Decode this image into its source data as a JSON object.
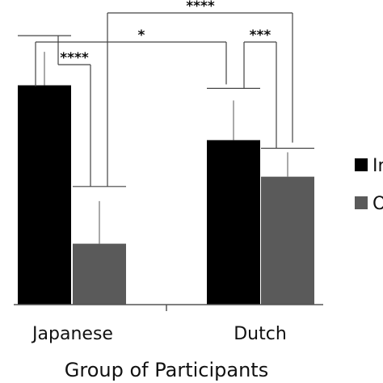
{
  "chart_data": {
    "type": "bar",
    "categories": [
      "Japanese",
      "Dutch"
    ],
    "xlabel": "Group of Participants",
    "ylabel": "",
    "ylim": [
      0,
      100
    ],
    "grid": false,
    "legend_placement": "right (partially cropped)",
    "series": [
      {
        "name": "In",
        "color": "#000000",
        "values": [
          72,
          54
        ],
        "errors": [
          11,
          13
        ]
      },
      {
        "name": "O",
        "color": "#5a5a5a",
        "values": [
          20,
          42
        ],
        "errors": [
          14,
          8
        ]
      }
    ],
    "significance": [
      {
        "label": "****",
        "comparison": "Japanese: In vs O"
      },
      {
        "label": "***",
        "comparison": "Dutch: In vs O"
      },
      {
        "label": "*",
        "comparison": "Japanese In/O vs Dutch In/O"
      },
      {
        "label": "****",
        "comparison": "Japanese O vs Dutch O"
      }
    ]
  }
}
